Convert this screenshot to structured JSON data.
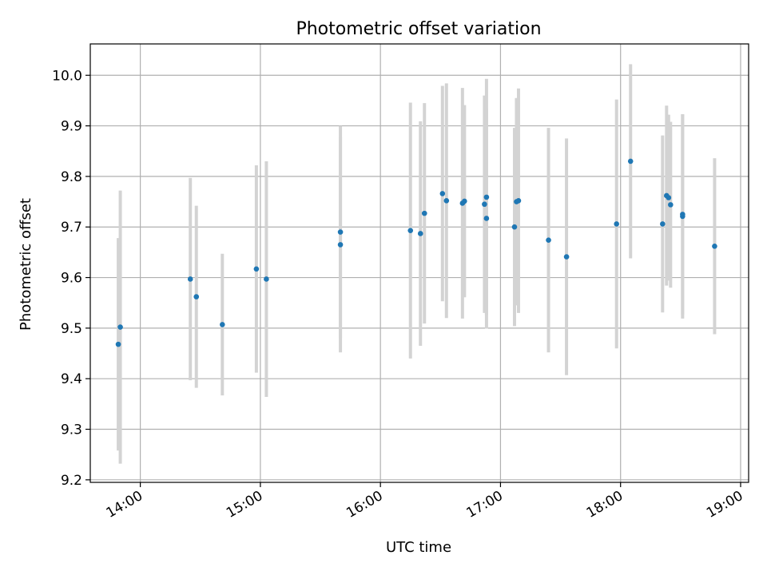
{
  "chart_data": {
    "type": "scatter",
    "title": "Photometric offset variation",
    "xlabel": "UTC time",
    "ylabel": "Photometric offset",
    "x_unit": "time",
    "xlim": [
      "13:35",
      "19:04"
    ],
    "ylim": [
      9.195,
      10.062
    ],
    "x_ticks": [
      "14:00",
      "15:00",
      "16:00",
      "17:00",
      "18:00",
      "19:00"
    ],
    "y_ticks": [
      "9.2",
      "9.3",
      "9.4",
      "9.5",
      "9.6",
      "9.7",
      "9.8",
      "9.9",
      "10.0"
    ],
    "grid": true,
    "marker_color": "#1f77b4",
    "errorbar_color": "#d3d3d3",
    "points": [
      {
        "x": "13:49",
        "y": 9.468,
        "yerr": 0.21
      },
      {
        "x": "13:50",
        "y": 9.502,
        "yerr": 0.27
      },
      {
        "x": "14:25",
        "y": 9.597,
        "yerr": 0.2
      },
      {
        "x": "14:28",
        "y": 9.562,
        "yerr": 0.18
      },
      {
        "x": "14:41",
        "y": 9.507,
        "yerr": 0.14
      },
      {
        "x": "14:58",
        "y": 9.617,
        "yerr": 0.205
      },
      {
        "x": "15:03",
        "y": 9.597,
        "yerr": 0.233
      },
      {
        "x": "15:40",
        "y": 9.69,
        "yerr": 0.21
      },
      {
        "x": "15:40",
        "y": 9.665,
        "yerr": 0.213
      },
      {
        "x": "16:15",
        "y": 9.693,
        "yerr": 0.253
      },
      {
        "x": "16:20",
        "y": 9.687,
        "yerr": 0.222
      },
      {
        "x": "16:22",
        "y": 9.727,
        "yerr": 0.218
      },
      {
        "x": "16:31",
        "y": 9.766,
        "yerr": 0.213
      },
      {
        "x": "16:33",
        "y": 9.752,
        "yerr": 0.232
      },
      {
        "x": "16:41",
        "y": 9.747,
        "yerr": 0.228
      },
      {
        "x": "16:42",
        "y": 9.751,
        "yerr": 0.19
      },
      {
        "x": "16:52",
        "y": 9.745,
        "yerr": 0.215
      },
      {
        "x": "16:53",
        "y": 9.759,
        "yerr": 0.234
      },
      {
        "x": "16:53",
        "y": 9.717,
        "yerr": 0.218
      },
      {
        "x": "17:07",
        "y": 9.7,
        "yerr": 0.196
      },
      {
        "x": "17:08",
        "y": 9.75,
        "yerr": 0.205
      },
      {
        "x": "17:09",
        "y": 9.752,
        "yerr": 0.222
      },
      {
        "x": "17:24",
        "y": 9.674,
        "yerr": 0.222
      },
      {
        "x": "17:33",
        "y": 9.641,
        "yerr": 0.234
      },
      {
        "x": "17:58",
        "y": 9.706,
        "yerr": 0.246
      },
      {
        "x": "18:05",
        "y": 9.83,
        "yerr": 0.192
      },
      {
        "x": "18:21",
        "y": 9.706,
        "yerr": 0.175
      },
      {
        "x": "18:23",
        "y": 9.762,
        "yerr": 0.178
      },
      {
        "x": "18:24",
        "y": 9.758,
        "yerr": 0.164
      },
      {
        "x": "18:25",
        "y": 9.744,
        "yerr": 0.164
      },
      {
        "x": "18:31",
        "y": 9.721,
        "yerr": 0.202
      },
      {
        "x": "18:31",
        "y": 9.725,
        "yerr": 0.198
      },
      {
        "x": "18:47",
        "y": 9.662,
        "yerr": 0.174
      }
    ]
  }
}
